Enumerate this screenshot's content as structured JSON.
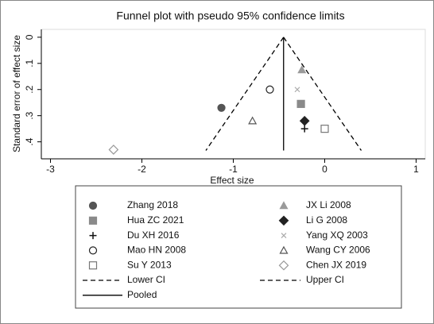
{
  "chart_data": {
    "type": "scatter",
    "title": "Funnel plot with pseudo 95% confidence limits",
    "x_label": "Effect size",
    "y_label": "Standard error of effect size",
    "xlim": [
      -3.1,
      1.1
    ],
    "ylim": [
      -0.03,
      0.465
    ],
    "y_reversed": true,
    "xticks": [
      -3,
      -2,
      -1,
      0,
      1
    ],
    "yticks": [
      0,
      {
        "value": 0.1,
        "label": ".1"
      },
      {
        "value": 0.2,
        "label": ".2"
      },
      {
        "value": 0.3,
        "label": ".3"
      },
      {
        "value": 0.4,
        "label": ".4"
      }
    ],
    "series": [
      {
        "name": "Zhang 2018",
        "marker": "circle",
        "color": "#555555",
        "x": [
          -1.13
        ],
        "y": [
          0.27
        ]
      },
      {
        "name": "JX Li 2008",
        "marker": "triangle",
        "color": "#9a9a9a",
        "x": [
          -0.25
        ],
        "y": [
          0.125
        ]
      },
      {
        "name": "Hua ZC 2021",
        "marker": "square",
        "color": "#8a8a8a",
        "x": [
          -0.26
        ],
        "y": [
          0.255
        ]
      },
      {
        "name": "Li G 2008",
        "marker": "diamond",
        "color": "#222222",
        "x": [
          -0.22
        ],
        "y": [
          0.32
        ]
      },
      {
        "name": "Du XH 2016",
        "marker": "plus",
        "color": "#111111",
        "x": [
          -0.22
        ],
        "y": [
          0.35
        ]
      },
      {
        "name": "Yang XQ 2003",
        "marker": "x",
        "color": "#aaaaaa",
        "x": [
          -0.3
        ],
        "y": [
          0.2
        ]
      },
      {
        "name": "Mao HN 2008",
        "marker": "circle-open",
        "color": "#222222",
        "x": [
          -0.6
        ],
        "y": [
          0.2
        ]
      },
      {
        "name": "Wang CY 2006",
        "marker": "triangle-open",
        "color": "#555555",
        "x": [
          -0.79
        ],
        "y": [
          0.32
        ]
      },
      {
        "name": "Su Y 2013",
        "marker": "square-open",
        "color": "#777777",
        "x": [
          0.0
        ],
        "y": [
          0.35
        ]
      },
      {
        "name": "Chen JX 2019",
        "marker": "diamond-open",
        "color": "#999999",
        "x": [
          -2.31
        ],
        "y": [
          0.43
        ]
      },
      {
        "name": "Lower CI",
        "marker": "dash-line",
        "color": "#000000",
        "x": [
          -0.45,
          -1.3
        ],
        "y": [
          0,
          0.433
        ]
      },
      {
        "name": "Upper CI",
        "marker": "dash-line",
        "color": "#000000",
        "x": [
          -0.45,
          0.4
        ],
        "y": [
          0,
          0.433
        ]
      },
      {
        "name": "Pooled",
        "marker": "solid-line",
        "color": "#000000",
        "x": [
          -0.45,
          -0.45
        ],
        "y": [
          0,
          0.433
        ]
      }
    ]
  }
}
